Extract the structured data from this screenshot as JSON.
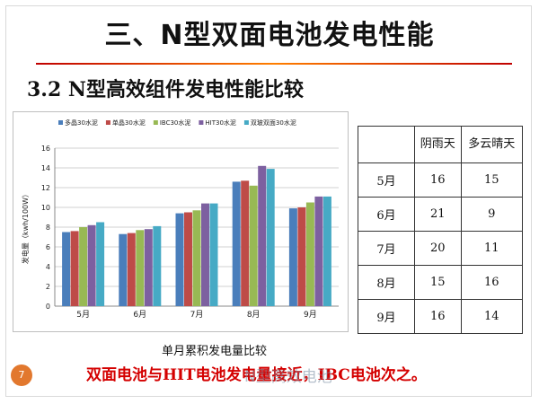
{
  "page": {
    "title": "三、N型双面电池发电性能",
    "subtitle": "3.2 N型高效组件发电性能比较",
    "caption": "单月累积发电量比较",
    "slide_number": "7",
    "conclusion": "双面电池与HIT电池发电量接近，IBC电池次之。",
    "watermark": "N型高效电池"
  },
  "table": {
    "headers": [
      "",
      "阴雨天",
      "多云晴天"
    ],
    "rows": [
      [
        "5月",
        "16",
        "15"
      ],
      [
        "6月",
        "21",
        "9"
      ],
      [
        "7月",
        "20",
        "11"
      ],
      [
        "8月",
        "15",
        "16"
      ],
      [
        "9月",
        "16",
        "14"
      ]
    ]
  },
  "chart_data": {
    "type": "bar",
    "title": "",
    "xlabel": "",
    "ylabel": "发电量（kwh/100W）",
    "categories": [
      "5月",
      "6月",
      "7月",
      "8月",
      "9月"
    ],
    "ylim": [
      0,
      16
    ],
    "yticks": [
      0,
      2,
      4,
      6,
      8,
      10,
      12,
      14,
      16
    ],
    "grid": true,
    "legend_position": "top",
    "series": [
      {
        "name": "多晶30水泥",
        "color": "#4a7ebb",
        "values": [
          7.5,
          7.3,
          9.4,
          12.6,
          9.9
        ]
      },
      {
        "name": "单晶30水泥",
        "color": "#be4b48",
        "values": [
          7.6,
          7.4,
          9.5,
          12.7,
          10.0
        ]
      },
      {
        "name": "IBC30水泥",
        "color": "#98b954",
        "values": [
          8.0,
          7.7,
          9.7,
          12.2,
          10.5
        ]
      },
      {
        "name": "HIT30水泥",
        "color": "#7d60a0",
        "values": [
          8.2,
          7.8,
          10.4,
          14.2,
          11.1
        ]
      },
      {
        "name": "双玻双面30水泥",
        "color": "#46aac5",
        "values": [
          8.5,
          8.1,
          10.4,
          13.9,
          11.1
        ]
      }
    ]
  }
}
